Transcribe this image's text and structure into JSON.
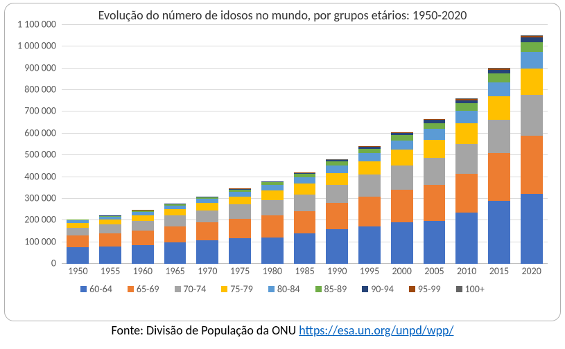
{
  "chart": {
    "type": "stacked-bar",
    "title": "Evolução do número de idosos no mundo, por grupos etários: 1950-2020",
    "title_fontsize": 18,
    "background_color": "#ffffff",
    "border_color": "#b0b0b0",
    "grid_color": "#d9d9d9",
    "axis_color": "#bfbfbf",
    "label_color": "#595959",
    "label_fontsize": 14,
    "ylim": [
      0,
      1100000
    ],
    "ytick_step": 100000,
    "ytick_format": "space-thousands",
    "categories": [
      "1950",
      "1955",
      "1960",
      "1965",
      "1970",
      "1975",
      "1980",
      "1985",
      "1990",
      "1995",
      "2000",
      "2005",
      "2010",
      "2015",
      "2020"
    ],
    "series": [
      {
        "name": "60-64",
        "color": "#4472c4",
        "values": [
          75000,
          80000,
          87000,
          100000,
          108000,
          118000,
          122000,
          140000,
          158000,
          172000,
          190000,
          198000,
          235000,
          290000,
          322000
        ]
      },
      {
        "name": "65-69",
        "color": "#ed7d31",
        "values": [
          55000,
          60000,
          65000,
          72000,
          83000,
          90000,
          100000,
          102000,
          122000,
          138000,
          150000,
          165000,
          178000,
          220000,
          266000
        ]
      },
      {
        "name": "70-74",
        "color": "#a5a5a5",
        "values": [
          37000,
          40000,
          45000,
          50000,
          55000,
          64000,
          70000,
          77000,
          82000,
          100000,
          112000,
          123000,
          138000,
          152000,
          188000
        ]
      },
      {
        "name": "75-79",
        "color": "#ffc000",
        "values": [
          22000,
          24000,
          27000,
          30000,
          34000,
          38000,
          46000,
          50000,
          56000,
          60000,
          74000,
          84000,
          93000,
          106000,
          120000
        ]
      },
      {
        "name": "80-84",
        "color": "#5b9bd5",
        "values": [
          10000,
          12000,
          14000,
          16000,
          18000,
          21000,
          24000,
          30000,
          34000,
          38000,
          40000,
          51000,
          59000,
          65000,
          76000
        ]
      },
      {
        "name": "85-89",
        "color": "#70ad47",
        "values": [
          4000,
          5000,
          6000,
          7000,
          8000,
          10000,
          12000,
          14000,
          18000,
          21000,
          24000,
          26000,
          34000,
          40000,
          45000
        ]
      },
      {
        "name": "90-94",
        "color": "#264478",
        "values": [
          1500,
          1800,
          2200,
          2600,
          3000,
          3500,
          4200,
          5000,
          6500,
          8000,
          10000,
          13000,
          15000,
          19000,
          22000
        ]
      },
      {
        "name": "95-99",
        "color": "#9e480e",
        "values": [
          300,
          400,
          500,
          600,
          700,
          900,
          1100,
          1400,
          1800,
          2300,
          3000,
          4000,
          5000,
          6000,
          8000
        ]
      },
      {
        "name": "100+",
        "color": "#636363",
        "values": [
          50,
          70,
          90,
          120,
          150,
          200,
          260,
          350,
          450,
          600,
          800,
          1100,
          1500,
          2000,
          2800
        ]
      }
    ],
    "bar_width": 0.68
  },
  "source": {
    "prefix": "Fonte: Divisão de População da ONU ",
    "link_text": "https://esa.un.org/unpd/wpp/",
    "link_href": "https://esa.un.org/unpd/wpp/"
  }
}
